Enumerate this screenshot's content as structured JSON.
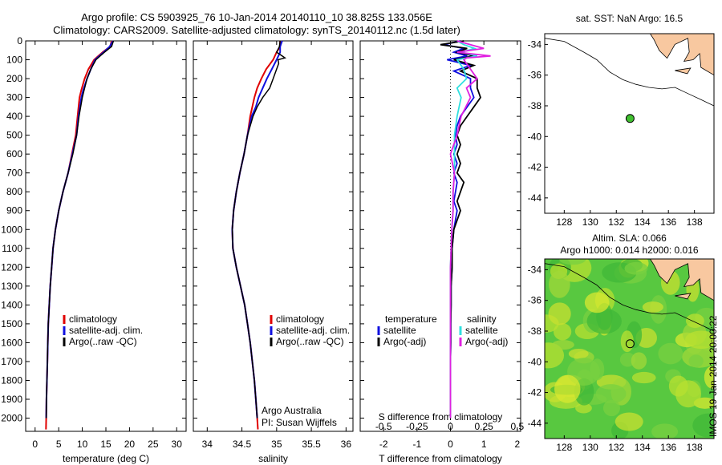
{
  "header": {
    "line1": "Argo profile: CS 5903925_76 10-Jan-2014 20140110_10 38.825S 133.056E",
    "line2": "Climatology: CARS2009. Satellite-adjusted climatology: synTS_20140112.nc (1.5d later)"
  },
  "depth_ticks": [
    "0",
    "100",
    "200",
    "300",
    "400",
    "500",
    "600",
    "700",
    "800",
    "900",
    "1000",
    "1100",
    "1200",
    "1300",
    "1400",
    "1500",
    "1600",
    "1700",
    "1800",
    "1900",
    "2000"
  ],
  "colors": {
    "climatology": "#e00000",
    "satellite": "#1010e0",
    "argo": "#000000",
    "sat_salinity": "#30e0e0",
    "argo_salinity": "#e020e0",
    "land": "#f8c8a0"
  },
  "chart_data": [
    {
      "type": "line",
      "xlabel": "temperature (deg C)",
      "xlim": [
        -2,
        32
      ],
      "ylim": [
        0,
        2070
      ],
      "x_ticks": [
        "0",
        "5",
        "10",
        "15",
        "20",
        "25",
        "30"
      ],
      "legend": [
        "climatology",
        "satellite-adj. clim.",
        "Argo(..raw -QC)"
      ],
      "legend_position": "lower-center",
      "series": [
        {
          "name": "climatology",
          "depth": [
            0,
            30,
            60,
            100,
            150,
            200,
            260,
            300,
            400,
            500,
            600,
            700,
            800,
            900,
            1000,
            1100,
            1200,
            1300,
            1400,
            1500,
            1600,
            1700,
            1800,
            1900,
            2000,
            2060
          ],
          "values": [
            16.2,
            15.9,
            14.3,
            12.5,
            11.3,
            10.5,
            9.8,
            9.4,
            9.0,
            8.6,
            7.8,
            7.0,
            5.9,
            5.0,
            4.3,
            3.8,
            3.5,
            3.2,
            3.0,
            2.8,
            2.7,
            2.6,
            2.5,
            2.4,
            2.35,
            2.3
          ]
        },
        {
          "name": "satellite-adj. clim.",
          "depth": [
            0,
            30,
            60,
            100,
            150,
            200,
            260,
            300,
            400,
            500,
            600,
            700,
            800,
            900,
            1000,
            1100,
            1200,
            1300,
            1400,
            1500,
            1600,
            1700,
            1800,
            1900,
            2000
          ],
          "values": [
            16.5,
            15.8,
            14.5,
            12.7,
            11.8,
            11.0,
            10.2,
            9.8,
            9.2,
            8.8,
            7.9,
            7.0,
            5.9,
            5.0,
            4.3,
            3.8,
            3.5,
            3.2,
            3.0,
            2.8,
            2.7,
            2.6,
            2.5,
            2.4,
            2.35
          ]
        },
        {
          "name": "Argo(..raw -QC)",
          "depth": [
            0,
            30,
            60,
            100,
            150,
            200,
            260,
            300,
            400,
            500,
            600,
            700,
            800,
            900,
            1000,
            1100,
            1200,
            1300,
            1400,
            1500,
            1600,
            1700,
            1800,
            1900,
            2000
          ],
          "values": [
            16.6,
            16.2,
            14.7,
            12.9,
            11.8,
            11.0,
            10.4,
            10.0,
            9.3,
            8.8,
            8.0,
            7.0,
            5.9,
            5.0,
            4.3,
            3.8,
            3.5,
            3.2,
            3.0,
            2.8,
            2.7,
            2.6,
            2.5,
            2.4,
            2.35
          ]
        }
      ]
    },
    {
      "type": "line",
      "xlabel": "salinity",
      "xlim": [
        33.8,
        36.1
      ],
      "ylim": [
        0,
        2070
      ],
      "x_ticks": [
        "34",
        "34.5",
        "35",
        "35.5",
        "36"
      ],
      "legend": [
        "climatology",
        "satellite-adj. clim.",
        "Argo(..raw -QC)"
      ],
      "legend_position": "lower-center",
      "annotation": [
        "Argo Australia",
        "PI: Susan Wijffels"
      ],
      "series": [
        {
          "name": "climatology",
          "depth": [
            0,
            30,
            60,
            100,
            150,
            200,
            250,
            300,
            350,
            400,
            500,
            600,
            700,
            800,
            900,
            1000,
            1100,
            1200,
            1300,
            1400,
            1500,
            1600,
            1700,
            1800,
            1900,
            2000,
            2060
          ],
          "values": [
            35.05,
            35.05,
            35.0,
            34.95,
            34.85,
            34.78,
            34.72,
            34.68,
            34.65,
            34.62,
            34.58,
            34.53,
            34.47,
            34.42,
            34.38,
            34.36,
            34.37,
            34.42,
            34.48,
            34.54,
            34.58,
            34.62,
            34.65,
            34.68,
            34.7,
            34.72,
            34.73
          ]
        },
        {
          "name": "satellite-adj. clim.",
          "depth": [
            0,
            30,
            60,
            100,
            150,
            200,
            250,
            300,
            350,
            400,
            500,
            600,
            700,
            800,
            900,
            1000,
            1100,
            1200,
            1300,
            1400,
            1500,
            1600,
            1700,
            1800,
            1900,
            2000
          ],
          "values": [
            35.08,
            35.05,
            35.05,
            35.0,
            34.93,
            34.86,
            34.8,
            34.74,
            34.7,
            34.64,
            34.58,
            34.53,
            34.47,
            34.42,
            34.38,
            34.36,
            34.37,
            34.42,
            34.48,
            34.54,
            34.58,
            34.62,
            34.65,
            34.68,
            34.7,
            34.72
          ]
        },
        {
          "name": "Argo(..raw -QC)",
          "depth": [
            0,
            30,
            60,
            80,
            90,
            100,
            120,
            150,
            200,
            250,
            300,
            350,
            400,
            500,
            600,
            700,
            800,
            900,
            1000,
            1100,
            1200,
            1300,
            1400,
            1500,
            1600,
            1700,
            1800,
            1900,
            2000
          ],
          "values": [
            35.05,
            35.04,
            35.0,
            35.08,
            35.12,
            35.02,
            35.03,
            35.0,
            34.95,
            34.9,
            34.8,
            34.72,
            34.66,
            34.58,
            34.53,
            34.47,
            34.42,
            34.38,
            34.36,
            34.37,
            34.42,
            34.48,
            34.54,
            34.58,
            34.62,
            34.65,
            34.68,
            34.7,
            34.72
          ]
        }
      ]
    },
    {
      "type": "line",
      "xlabel": "T difference from climatology",
      "xlabel_top": "S difference from climatology",
      "xlim": [
        -2.7,
        2.1
      ],
      "ylim": [
        0,
        2070
      ],
      "x_ticks": [
        "-2",
        "-1",
        "0",
        "1",
        "2"
      ],
      "s_ticks": [
        "-0.5",
        "-0.25",
        "0",
        "0.25",
        "0.5"
      ],
      "legend_temperature": [
        "temperature",
        "satellite",
        "Argo(-adj)"
      ],
      "legend_salinity": [
        "salinity",
        "satellite",
        "Argo(-adj)"
      ],
      "series": [
        {
          "name": "satellite",
          "depth": [
            0,
            20,
            40,
            60,
            80,
            100,
            130,
            160,
            200,
            250,
            300,
            350,
            400,
            450,
            500,
            550,
            600,
            650,
            700,
            750,
            800,
            850,
            900,
            1000,
            1100,
            1200,
            1300,
            1400,
            1500,
            1600,
            1700,
            1800,
            1900,
            2000
          ],
          "values": [
            0.3,
            -0.2,
            0.4,
            0.1,
            0.5,
            -0.1,
            0.6,
            0.1,
            0.6,
            0.6,
            0.7,
            0.5,
            0.3,
            0.2,
            0.15,
            0.2,
            0.1,
            0.2,
            0.1,
            0.2,
            0.15,
            0.1,
            0.2,
            0.1,
            0.05,
            0.05,
            0.02,
            0.02,
            0.01,
            0.01,
            0.0,
            0.0,
            0.0,
            0.0
          ]
        },
        {
          "name": "Argo(-adj)",
          "depth": [
            0,
            20,
            40,
            60,
            80,
            100,
            130,
            160,
            200,
            250,
            300,
            350,
            400,
            450,
            500,
            550,
            600,
            650,
            700,
            750,
            800,
            850,
            900,
            1000,
            1100,
            1200,
            1300,
            1400,
            1500,
            1600,
            1700,
            1800,
            1900,
            2000
          ],
          "values": [
            0.4,
            -0.3,
            0.5,
            0.2,
            0.7,
            0.1,
            0.7,
            0.3,
            0.8,
            0.8,
            0.9,
            0.7,
            0.5,
            0.3,
            0.2,
            0.3,
            0.2,
            0.3,
            0.2,
            0.4,
            0.3,
            0.2,
            0.3,
            0.1,
            0.05,
            0.05,
            0.02,
            0.02,
            0.01,
            0.01,
            0.0,
            0.0,
            0.0,
            0.0
          ]
        },
        {
          "name": "satellite",
          "depth": [
            0,
            20,
            40,
            60,
            80,
            100,
            150,
            200,
            250,
            300,
            400,
            500,
            600,
            700,
            800,
            900,
            1000,
            1200,
            1500,
            2000
          ],
          "values": [
            0.05,
            0.1,
            0.18,
            0.08,
            0.2,
            0.05,
            0.1,
            0.12,
            0.05,
            0.08,
            0.05,
            0.03,
            0.03,
            0.03,
            0.02,
            0.02,
            0.01,
            0.0,
            0.0,
            0.0
          ]
        },
        {
          "name": "Argo(-adj)",
          "depth": [
            0,
            20,
            40,
            60,
            80,
            90,
            100,
            150,
            200,
            250,
            300,
            400,
            500,
            600,
            700,
            800,
            900,
            1000,
            1200,
            1500,
            2000
          ],
          "values": [
            0.05,
            0.15,
            0.25,
            0.05,
            0.3,
            0.12,
            0.1,
            0.15,
            0.2,
            0.12,
            0.15,
            0.08,
            0.05,
            0.0,
            0.03,
            0.02,
            0.02,
            0.01,
            0.0,
            0.0,
            0.0
          ]
        }
      ]
    },
    {
      "type": "scatter",
      "title": "sat. SST: NaN Argo: 16.5",
      "xlim": [
        126.5,
        139.5
      ],
      "ylim": [
        -45,
        -33.3
      ],
      "x_ticks": [
        "128",
        "130",
        "132",
        "134",
        "136",
        "138"
      ],
      "y_ticks": [
        "-34",
        "-36",
        "-38",
        "-40",
        "-42",
        "-44"
      ],
      "x": [
        133.056
      ],
      "y": [
        -38.825
      ]
    },
    {
      "type": "heatmap",
      "title_lines": [
        "Altim. SLA: 0.066",
        "Argo h1000: 0.014 h2000: 0.016"
      ],
      "xlim": [
        126.5,
        139.5
      ],
      "ylim": [
        -45,
        -33.3
      ],
      "x_ticks": [
        "128",
        "130",
        "132",
        "134",
        "136",
        "138"
      ],
      "y_ticks": [
        "-34",
        "-36",
        "-38",
        "-40",
        "-42",
        "-44"
      ],
      "x": [
        133.056
      ],
      "y": [
        -38.825
      ],
      "side_label": "IMOS 19-Jan-2014 20:00:22"
    }
  ]
}
